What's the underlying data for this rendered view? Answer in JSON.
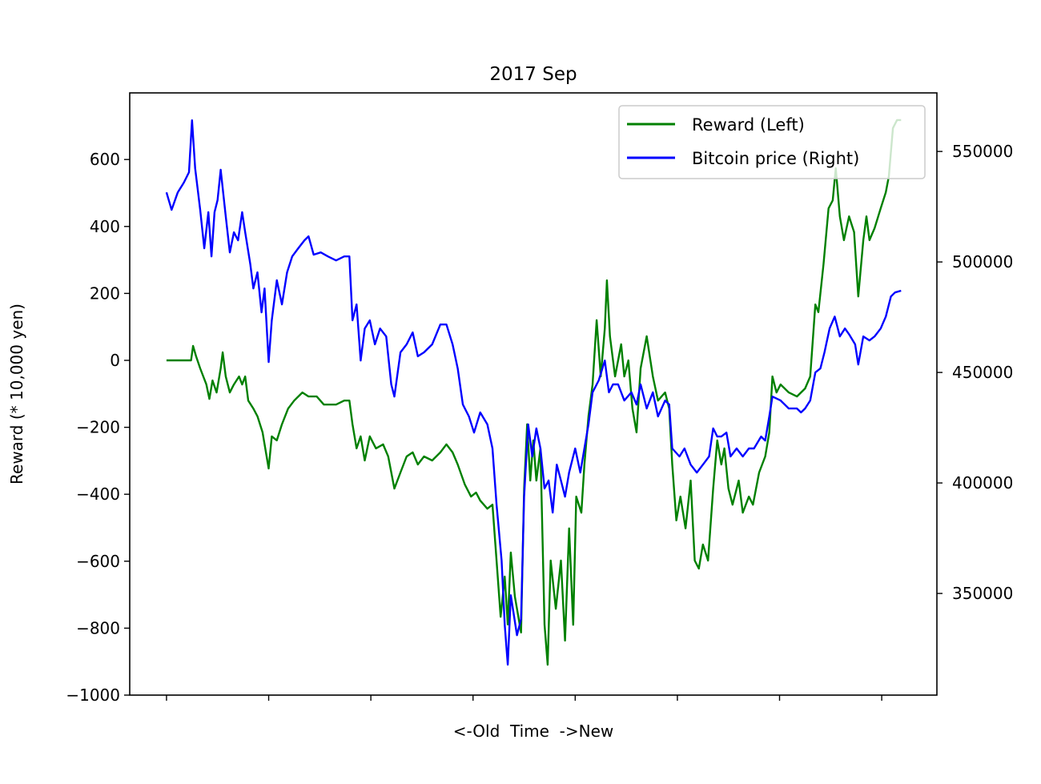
{
  "chart_data": {
    "type": "line",
    "title": "2017 Sep",
    "xlabel": "<-Old  Time  ->New",
    "ylabel": "Reward (* 10,000 yen)",
    "y2label": "",
    "xlim": [
      -36,
      754
    ],
    "xticks": [
      0,
      100,
      200,
      300,
      400,
      500,
      600,
      700
    ],
    "xtick_labels_shown": false,
    "ylim": [
      -1000,
      799
    ],
    "yticks": [
      -1000,
      -800,
      -600,
      -400,
      -200,
      0,
      200,
      400,
      600
    ],
    "ytick_labels": [
      "−1000",
      "−800",
      "−600",
      "−400",
      "−200",
      "0",
      "200",
      "400",
      "600"
    ],
    "y2lim": [
      304000,
      576500
    ],
    "y2ticks": [
      350000,
      400000,
      450000,
      500000,
      550000
    ],
    "y2tick_labels": [
      "350000",
      "400000",
      "450000",
      "500000",
      "550000"
    ],
    "grid": false,
    "legend_position": "top-right",
    "series": [
      {
        "name": "Reward (Left)",
        "axis": "left",
        "color": "#008000",
        "points": [
          [
            0,
            0
          ],
          [
            24,
            0
          ],
          [
            26,
            43
          ],
          [
            29,
            12
          ],
          [
            33,
            -24
          ],
          [
            39,
            -72
          ],
          [
            42,
            -115
          ],
          [
            45,
            -60
          ],
          [
            49,
            -96
          ],
          [
            53,
            -24
          ],
          [
            55,
            24
          ],
          [
            58,
            -48
          ],
          [
            62,
            -96
          ],
          [
            66,
            -72
          ],
          [
            71,
            -48
          ],
          [
            74,
            -72
          ],
          [
            77,
            -48
          ],
          [
            80,
            -120
          ],
          [
            85,
            -144
          ],
          [
            89,
            -167
          ],
          [
            94,
            -215
          ],
          [
            100,
            -323
          ],
          [
            103,
            -227
          ],
          [
            108,
            -239
          ],
          [
            113,
            -191
          ],
          [
            119,
            -144
          ],
          [
            125,
            -120
          ],
          [
            133,
            -96
          ],
          [
            139,
            -108
          ],
          [
            147,
            -108
          ],
          [
            154,
            -132
          ],
          [
            166,
            -132
          ],
          [
            174,
            -120
          ],
          [
            179,
            -120
          ],
          [
            182,
            -191
          ],
          [
            186,
            -263
          ],
          [
            190,
            -227
          ],
          [
            194,
            -299
          ],
          [
            199,
            -227
          ],
          [
            205,
            -263
          ],
          [
            212,
            -251
          ],
          [
            217,
            -287
          ],
          [
            223,
            -383
          ],
          [
            229,
            -335
          ],
          [
            235,
            -287
          ],
          [
            241,
            -275
          ],
          [
            246,
            -311
          ],
          [
            252,
            -287
          ],
          [
            260,
            -299
          ],
          [
            268,
            -275
          ],
          [
            274,
            -251
          ],
          [
            280,
            -275
          ],
          [
            285,
            -311
          ],
          [
            292,
            -371
          ],
          [
            298,
            -407
          ],
          [
            303,
            -395
          ],
          [
            307,
            -419
          ],
          [
            314,
            -443
          ],
          [
            319,
            -431
          ],
          [
            323,
            -598
          ],
          [
            327,
            -766
          ],
          [
            331,
            -646
          ],
          [
            334,
            -789
          ],
          [
            337,
            -574
          ],
          [
            341,
            -706
          ],
          [
            347,
            -813
          ],
          [
            350,
            -383
          ],
          [
            353,
            -191
          ],
          [
            356,
            -359
          ],
          [
            359,
            -239
          ],
          [
            362,
            -359
          ],
          [
            366,
            -263
          ],
          [
            370,
            -789
          ],
          [
            373,
            -909
          ],
          [
            376,
            -598
          ],
          [
            381,
            -742
          ],
          [
            386,
            -598
          ],
          [
            390,
            -837
          ],
          [
            394,
            -502
          ],
          [
            398,
            -790
          ],
          [
            401,
            -407
          ],
          [
            406,
            -455
          ],
          [
            409,
            -311
          ],
          [
            413,
            -167
          ],
          [
            417,
            -72
          ],
          [
            421,
            120
          ],
          [
            425,
            -48
          ],
          [
            429,
            96
          ],
          [
            431,
            239
          ],
          [
            434,
            72
          ],
          [
            439,
            -48
          ],
          [
            445,
            48
          ],
          [
            448,
            -48
          ],
          [
            452,
            0
          ],
          [
            456,
            -144
          ],
          [
            460,
            -215
          ],
          [
            464,
            -24
          ],
          [
            470,
            72
          ],
          [
            476,
            -48
          ],
          [
            481,
            -120
          ],
          [
            488,
            -96
          ],
          [
            492,
            -144
          ],
          [
            495,
            -311
          ],
          [
            499,
            -478
          ],
          [
            503,
            -407
          ],
          [
            508,
            -502
          ],
          [
            513,
            -359
          ],
          [
            517,
            -598
          ],
          [
            521,
            -622
          ],
          [
            525,
            -550
          ],
          [
            530,
            -598
          ],
          [
            535,
            -383
          ],
          [
            539,
            -239
          ],
          [
            543,
            -311
          ],
          [
            546,
            -263
          ],
          [
            550,
            -383
          ],
          [
            554,
            -431
          ],
          [
            560,
            -359
          ],
          [
            564,
            -455
          ],
          [
            570,
            -407
          ],
          [
            574,
            -431
          ],
          [
            580,
            -335
          ],
          [
            586,
            -287
          ],
          [
            590,
            -215
          ],
          [
            593,
            -48
          ],
          [
            597,
            -96
          ],
          [
            601,
            -72
          ],
          [
            609,
            -96
          ],
          [
            617,
            -108
          ],
          [
            625,
            -84
          ],
          [
            630,
            -48
          ],
          [
            635,
            167
          ],
          [
            638,
            144
          ],
          [
            643,
            287
          ],
          [
            648,
            454
          ],
          [
            652,
            478
          ],
          [
            655,
            574
          ],
          [
            659,
            430
          ],
          [
            663,
            359
          ],
          [
            668,
            430
          ],
          [
            673,
            383
          ],
          [
            677,
            191
          ],
          [
            682,
            359
          ],
          [
            685,
            430
          ],
          [
            688,
            359
          ],
          [
            693,
            395
          ],
          [
            699,
            454
          ],
          [
            704,
            502
          ],
          [
            707,
            550
          ],
          [
            711,
            694
          ],
          [
            715,
            718
          ],
          [
            719,
            718
          ]
        ]
      },
      {
        "name": "Bitcoin price (Right)",
        "axis": "right",
        "color": "#0000ff",
        "points": [
          [
            0,
            531500
          ],
          [
            5,
            523600
          ],
          [
            11,
            531500
          ],
          [
            17,
            535900
          ],
          [
            22,
            540600
          ],
          [
            25,
            564100
          ],
          [
            28,
            542400
          ],
          [
            33,
            523600
          ],
          [
            37,
            506200
          ],
          [
            41,
            522500
          ],
          [
            44,
            502500
          ],
          [
            47,
            522500
          ],
          [
            50,
            528000
          ],
          [
            53,
            541700
          ],
          [
            58,
            520700
          ],
          [
            62,
            504300
          ],
          [
            66,
            513400
          ],
          [
            70,
            509800
          ],
          [
            74,
            522500
          ],
          [
            77,
            513400
          ],
          [
            82,
            498900
          ],
          [
            85,
            488000
          ],
          [
            89,
            495300
          ],
          [
            93,
            477200
          ],
          [
            96,
            488000
          ],
          [
            100,
            454700
          ],
          [
            103,
            473600
          ],
          [
            108,
            491700
          ],
          [
            113,
            480800
          ],
          [
            118,
            495300
          ],
          [
            123,
            502500
          ],
          [
            129,
            506200
          ],
          [
            135,
            509800
          ],
          [
            139,
            511600
          ],
          [
            144,
            503300
          ],
          [
            151,
            504300
          ],
          [
            158,
            502500
          ],
          [
            166,
            500700
          ],
          [
            174,
            502500
          ],
          [
            179,
            502500
          ],
          [
            182,
            473600
          ],
          [
            186,
            480800
          ],
          [
            190,
            455400
          ],
          [
            194,
            469900
          ],
          [
            199,
            473600
          ],
          [
            204,
            462700
          ],
          [
            209,
            469900
          ],
          [
            215,
            466300
          ],
          [
            220,
            444600
          ],
          [
            223,
            439100
          ],
          [
            229,
            459100
          ],
          [
            235,
            462700
          ],
          [
            241,
            468100
          ],
          [
            246,
            457300
          ],
          [
            252,
            459100
          ],
          [
            260,
            462700
          ],
          [
            268,
            471700
          ],
          [
            274,
            471700
          ],
          [
            280,
            462700
          ],
          [
            285,
            451800
          ],
          [
            290,
            435500
          ],
          [
            296,
            430100
          ],
          [
            301,
            422800
          ],
          [
            307,
            431900
          ],
          [
            314,
            426500
          ],
          [
            319,
            415600
          ],
          [
            323,
            390200
          ],
          [
            328,
            364900
          ],
          [
            331,
            335900
          ],
          [
            334,
            317800
          ],
          [
            337,
            349200
          ],
          [
            343,
            331100
          ],
          [
            347,
            338300
          ],
          [
            350,
            393800
          ],
          [
            354,
            426500
          ],
          [
            358,
            412000
          ],
          [
            362,
            424700
          ],
          [
            366,
            415600
          ],
          [
            370,
            397500
          ],
          [
            374,
            401100
          ],
          [
            378,
            386600
          ],
          [
            382,
            408300
          ],
          [
            386,
            401100
          ],
          [
            390,
            393800
          ],
          [
            394,
            404700
          ],
          [
            400,
            415600
          ],
          [
            405,
            404700
          ],
          [
            409,
            415600
          ],
          [
            413,
            426500
          ],
          [
            417,
            441000
          ],
          [
            423,
            446400
          ],
          [
            429,
            455400
          ],
          [
            433,
            441000
          ],
          [
            437,
            444600
          ],
          [
            442,
            444600
          ],
          [
            448,
            437300
          ],
          [
            455,
            441000
          ],
          [
            460,
            435500
          ],
          [
            464,
            444600
          ],
          [
            470,
            433700
          ],
          [
            476,
            441000
          ],
          [
            481,
            430100
          ],
          [
            488,
            437300
          ],
          [
            492,
            435500
          ],
          [
            495,
            415600
          ],
          [
            502,
            412000
          ],
          [
            507,
            415600
          ],
          [
            513,
            408300
          ],
          [
            519,
            404700
          ],
          [
            525,
            408300
          ],
          [
            531,
            412000
          ],
          [
            535,
            424700
          ],
          [
            539,
            421000
          ],
          [
            543,
            421000
          ],
          [
            548,
            422800
          ],
          [
            552,
            412000
          ],
          [
            558,
            415600
          ],
          [
            564,
            412000
          ],
          [
            570,
            415600
          ],
          [
            575,
            415600
          ],
          [
            582,
            421000
          ],
          [
            586,
            419200
          ],
          [
            590,
            430100
          ],
          [
            593,
            439100
          ],
          [
            601,
            437300
          ],
          [
            609,
            433700
          ],
          [
            617,
            433700
          ],
          [
            621,
            431900
          ],
          [
            625,
            433700
          ],
          [
            630,
            437300
          ],
          [
            635,
            450000
          ],
          [
            640,
            451800
          ],
          [
            644,
            459100
          ],
          [
            649,
            469900
          ],
          [
            654,
            475300
          ],
          [
            659,
            466300
          ],
          [
            664,
            469900
          ],
          [
            668,
            467300
          ],
          [
            674,
            462700
          ],
          [
            677,
            453600
          ],
          [
            682,
            466300
          ],
          [
            688,
            464500
          ],
          [
            693,
            466300
          ],
          [
            699,
            469900
          ],
          [
            704,
            475300
          ],
          [
            709,
            484400
          ],
          [
            713,
            486200
          ],
          [
            719,
            487000
          ]
        ]
      }
    ]
  }
}
